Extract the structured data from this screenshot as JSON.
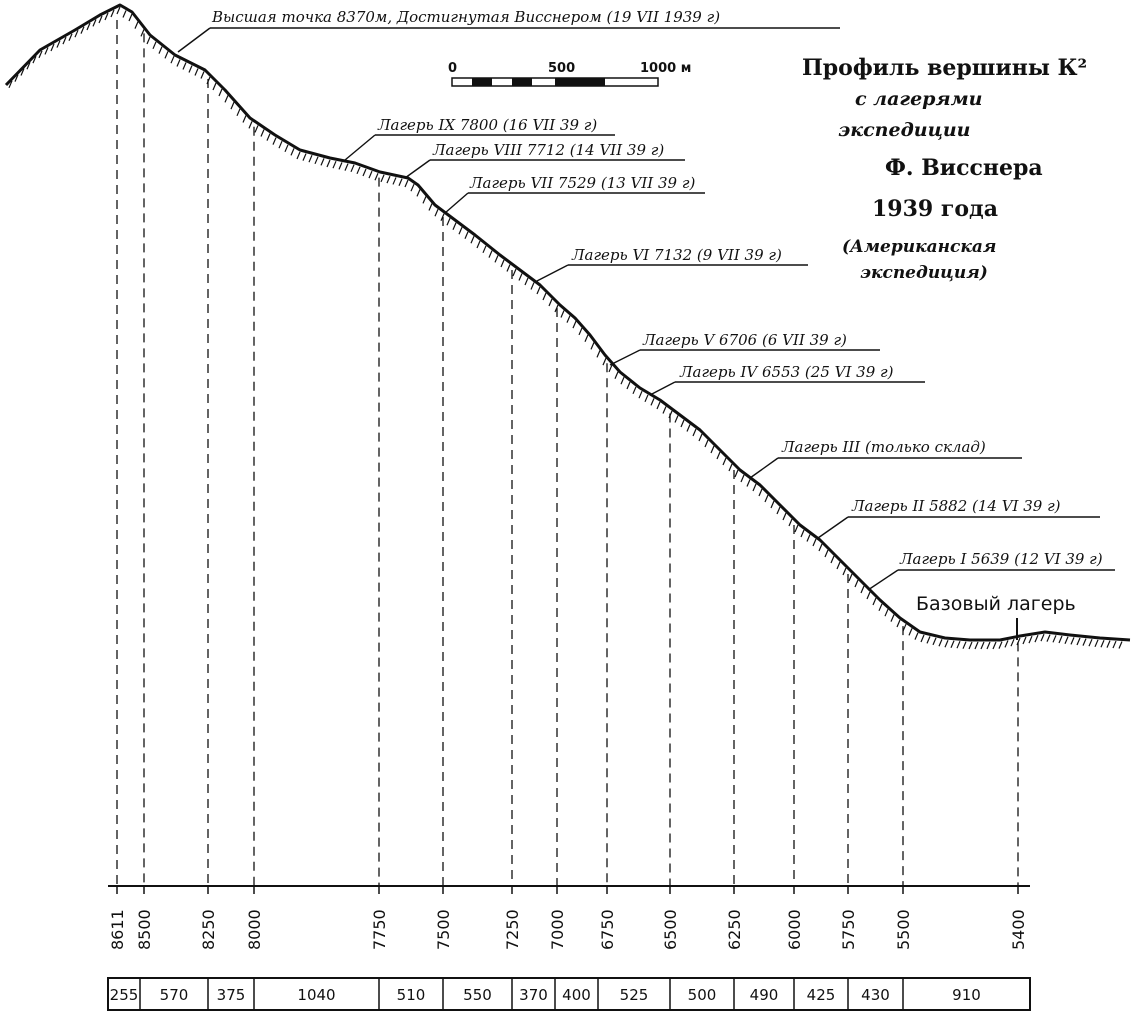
{
  "diagram": {
    "title_lines": [
      "Профиль вершины К²",
      "с лагерями",
      "экспедиции",
      "Ф. Висснера",
      "1939 года",
      "(Американская",
      "экспедиция)"
    ],
    "scale_bar": {
      "labels": [
        "0",
        "500",
        "1000 м"
      ]
    },
    "summit_label": "Высшая точка 8370м, Достигнутая Висснером (19 VII 1939 г)",
    "camps": [
      {
        "label": "Лагерь IX 7800 (16 VII 39 г)"
      },
      {
        "label": "Лагерь VIII 7712 (14 VII 39 г)"
      },
      {
        "label": "Лагерь VII 7529 (13 VII 39 г)"
      },
      {
        "label": "Лагерь VI 7132 (9 VII 39 г)"
      },
      {
        "label": "Лагерь V 6706 (6 VII 39 г)"
      },
      {
        "label": "Лагерь IV 6553 (25 VI 39 г)"
      },
      {
        "label": "Лагерь III (только склад)"
      },
      {
        "label": "Лагерь II 5882 (14 VI 39 г)"
      },
      {
        "label": "Лагерь I 5639 (12 VI 39 г)"
      }
    ],
    "base_camp_label": "Базовый лагерь",
    "elevation_ticks": [
      "8611",
      "8500",
      "8250",
      "8000",
      "7750",
      "7500",
      "7250",
      "7000",
      "6750",
      "6500",
      "6250",
      "6000",
      "5750",
      "5500",
      "5400"
    ],
    "segment_lengths": [
      "255",
      "570",
      "375",
      "1040",
      "510",
      "550",
      "370",
      "400",
      "525",
      "500",
      "490",
      "425",
      "430",
      "910"
    ]
  }
}
